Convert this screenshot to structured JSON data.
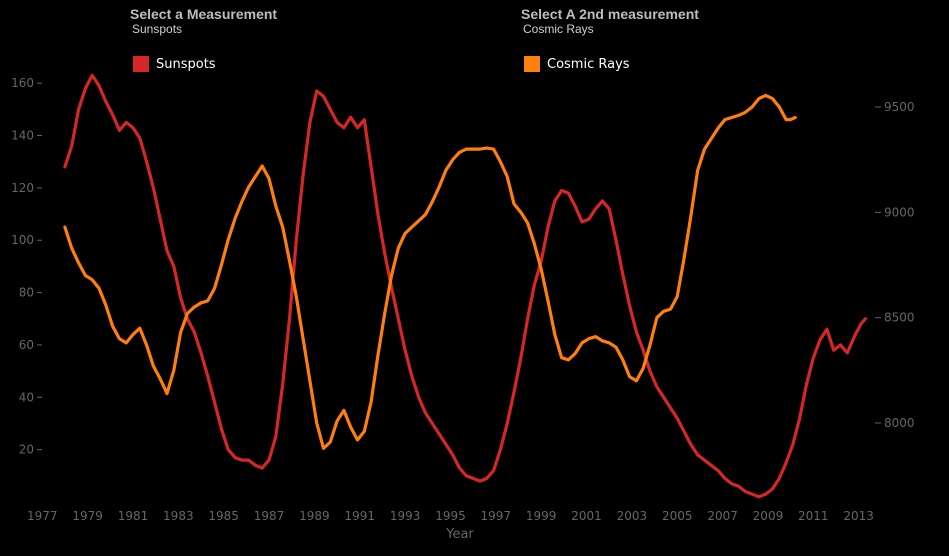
{
  "selectors": {
    "first": {
      "title": "Select a Measurement",
      "value": "Sunspots"
    },
    "second": {
      "title": "Select A 2nd measurement",
      "value": "Cosmic Rays"
    }
  },
  "chart_data": {
    "type": "line",
    "xlabel": "Year",
    "x_ticks": [
      "1977",
      "1979",
      "1981",
      "1983",
      "1985",
      "1987",
      "1989",
      "1991",
      "1993",
      "1995",
      "1997",
      "1999",
      "2001",
      "2003",
      "2005",
      "2007",
      "2009",
      "2011",
      "2013"
    ],
    "xlim": [
      1976.9,
      2013.5
    ],
    "y_left": {
      "ticks": [
        20,
        40,
        60,
        80,
        100,
        120,
        140,
        160
      ],
      "ylim": [
        0,
        170
      ]
    },
    "y_right": {
      "ticks": [
        8000,
        8500,
        9000,
        9500
      ],
      "ylim": [
        7880,
        9540
      ]
    },
    "grid": false,
    "series": [
      {
        "name": "Sunspots",
        "axis": "left",
        "color": "#d62728",
        "points": [
          [
            1978.0,
            128
          ],
          [
            1978.3,
            136
          ],
          [
            1978.6,
            150
          ],
          [
            1978.9,
            158
          ],
          [
            1979.2,
            163
          ],
          [
            1979.5,
            159
          ],
          [
            1979.8,
            153
          ],
          [
            1980.1,
            148
          ],
          [
            1980.4,
            142
          ],
          [
            1980.7,
            145
          ],
          [
            1981.0,
            143
          ],
          [
            1981.3,
            139
          ],
          [
            1981.6,
            130
          ],
          [
            1981.9,
            120
          ],
          [
            1982.2,
            108
          ],
          [
            1982.5,
            96
          ],
          [
            1982.8,
            90
          ],
          [
            1983.1,
            78
          ],
          [
            1983.4,
            70
          ],
          [
            1983.7,
            65
          ],
          [
            1984.0,
            57
          ],
          [
            1984.3,
            48
          ],
          [
            1984.6,
            38
          ],
          [
            1984.9,
            28
          ],
          [
            1985.2,
            20
          ],
          [
            1985.5,
            17
          ],
          [
            1985.8,
            16
          ],
          [
            1986.1,
            16
          ],
          [
            1986.4,
            14
          ],
          [
            1986.7,
            13
          ],
          [
            1987.0,
            16
          ],
          [
            1987.3,
            25
          ],
          [
            1987.6,
            45
          ],
          [
            1987.9,
            70
          ],
          [
            1988.2,
            100
          ],
          [
            1988.5,
            125
          ],
          [
            1988.8,
            145
          ],
          [
            1989.1,
            157
          ],
          [
            1989.4,
            155
          ],
          [
            1989.7,
            150
          ],
          [
            1990.0,
            145
          ],
          [
            1990.3,
            143
          ],
          [
            1990.6,
            147
          ],
          [
            1990.9,
            143
          ],
          [
            1991.2,
            146
          ],
          [
            1991.5,
            128
          ],
          [
            1991.8,
            110
          ],
          [
            1992.1,
            95
          ],
          [
            1992.4,
            82
          ],
          [
            1992.7,
            70
          ],
          [
            1993.0,
            58
          ],
          [
            1993.3,
            48
          ],
          [
            1993.6,
            40
          ],
          [
            1993.9,
            34
          ],
          [
            1994.2,
            30
          ],
          [
            1994.5,
            26
          ],
          [
            1994.8,
            22
          ],
          [
            1995.1,
            18
          ],
          [
            1995.4,
            13
          ],
          [
            1995.7,
            10
          ],
          [
            1996.0,
            9
          ],
          [
            1996.3,
            8
          ],
          [
            1996.6,
            9
          ],
          [
            1996.9,
            12
          ],
          [
            1997.2,
            20
          ],
          [
            1997.5,
            30
          ],
          [
            1997.8,
            42
          ],
          [
            1998.1,
            55
          ],
          [
            1998.4,
            70
          ],
          [
            1998.7,
            83
          ],
          [
            1999.0,
            92
          ],
          [
            1999.3,
            105
          ],
          [
            1999.6,
            115
          ],
          [
            1999.9,
            119
          ],
          [
            2000.2,
            118
          ],
          [
            2000.5,
            113
          ],
          [
            2000.8,
            107
          ],
          [
            2001.1,
            108
          ],
          [
            2001.4,
            112
          ],
          [
            2001.7,
            115
          ],
          [
            2002.0,
            112
          ],
          [
            2002.3,
            100
          ],
          [
            2002.6,
            87
          ],
          [
            2002.9,
            75
          ],
          [
            2003.2,
            65
          ],
          [
            2003.5,
            58
          ],
          [
            2003.8,
            50
          ],
          [
            2004.1,
            44
          ],
          [
            2004.4,
            40
          ],
          [
            2004.7,
            36
          ],
          [
            2005.0,
            32
          ],
          [
            2005.3,
            27
          ],
          [
            2005.6,
            22
          ],
          [
            2005.9,
            18
          ],
          [
            2006.2,
            16
          ],
          [
            2006.5,
            14
          ],
          [
            2006.8,
            12
          ],
          [
            2007.1,
            9
          ],
          [
            2007.4,
            7
          ],
          [
            2007.7,
            6
          ],
          [
            2008.0,
            4
          ],
          [
            2008.3,
            3
          ],
          [
            2008.6,
            2
          ],
          [
            2008.9,
            3
          ],
          [
            2009.2,
            5
          ],
          [
            2009.5,
            9
          ],
          [
            2009.8,
            15
          ],
          [
            2010.1,
            22
          ],
          [
            2010.4,
            32
          ],
          [
            2010.7,
            45
          ],
          [
            2011.0,
            55
          ],
          [
            2011.3,
            62
          ],
          [
            2011.6,
            66
          ],
          [
            2011.9,
            58
          ],
          [
            2012.2,
            60
          ],
          [
            2012.5,
            57
          ],
          [
            2012.8,
            63
          ],
          [
            2013.1,
            68
          ],
          [
            2013.3,
            70
          ]
        ]
      },
      {
        "name": "Cosmic Rays",
        "axis": "right",
        "color": "#ff7f0e",
        "points": [
          [
            1978.0,
            8930
          ],
          [
            1978.3,
            8830
          ],
          [
            1978.6,
            8760
          ],
          [
            1978.9,
            8700
          ],
          [
            1979.2,
            8680
          ],
          [
            1979.5,
            8640
          ],
          [
            1979.8,
            8560
          ],
          [
            1980.1,
            8460
          ],
          [
            1980.4,
            8400
          ],
          [
            1980.7,
            8380
          ],
          [
            1981.0,
            8420
          ],
          [
            1981.3,
            8450
          ],
          [
            1981.6,
            8370
          ],
          [
            1981.9,
            8270
          ],
          [
            1982.2,
            8210
          ],
          [
            1982.5,
            8140
          ],
          [
            1982.8,
            8250
          ],
          [
            1983.1,
            8430
          ],
          [
            1983.4,
            8520
          ],
          [
            1983.7,
            8550
          ],
          [
            1984.0,
            8570
          ],
          [
            1984.3,
            8580
          ],
          [
            1984.6,
            8640
          ],
          [
            1984.9,
            8750
          ],
          [
            1985.2,
            8870
          ],
          [
            1985.5,
            8970
          ],
          [
            1985.8,
            9050
          ],
          [
            1986.1,
            9120
          ],
          [
            1986.4,
            9170
          ],
          [
            1986.7,
            9220
          ],
          [
            1987.0,
            9160
          ],
          [
            1987.3,
            9030
          ],
          [
            1987.6,
            8930
          ],
          [
            1987.9,
            8770
          ],
          [
            1988.2,
            8600
          ],
          [
            1988.5,
            8400
          ],
          [
            1988.8,
            8200
          ],
          [
            1989.1,
            8000
          ],
          [
            1989.4,
            7880
          ],
          [
            1989.7,
            7910
          ],
          [
            1990.0,
            8010
          ],
          [
            1990.3,
            8060
          ],
          [
            1990.6,
            7980
          ],
          [
            1990.9,
            7920
          ],
          [
            1991.2,
            7960
          ],
          [
            1991.5,
            8100
          ],
          [
            1991.8,
            8320
          ],
          [
            1992.1,
            8520
          ],
          [
            1992.4,
            8700
          ],
          [
            1992.7,
            8830
          ],
          [
            1993.0,
            8900
          ],
          [
            1993.3,
            8930
          ],
          [
            1993.6,
            8960
          ],
          [
            1993.9,
            8990
          ],
          [
            1994.2,
            9050
          ],
          [
            1994.5,
            9120
          ],
          [
            1994.8,
            9200
          ],
          [
            1995.1,
            9250
          ],
          [
            1995.4,
            9285
          ],
          [
            1995.7,
            9300
          ],
          [
            1996.0,
            9300
          ],
          [
            1996.3,
            9300
          ],
          [
            1996.6,
            9305
          ],
          [
            1996.9,
            9300
          ],
          [
            1997.2,
            9240
          ],
          [
            1997.5,
            9170
          ],
          [
            1997.8,
            9040
          ],
          [
            1998.1,
            9000
          ],
          [
            1998.4,
            8950
          ],
          [
            1998.7,
            8850
          ],
          [
            1999.0,
            8730
          ],
          [
            1999.3,
            8580
          ],
          [
            1999.6,
            8420
          ],
          [
            1999.9,
            8310
          ],
          [
            2000.2,
            8300
          ],
          [
            2000.5,
            8330
          ],
          [
            2000.8,
            8380
          ],
          [
            2001.1,
            8400
          ],
          [
            2001.4,
            8410
          ],
          [
            2001.7,
            8390
          ],
          [
            2002.0,
            8380
          ],
          [
            2002.3,
            8360
          ],
          [
            2002.6,
            8300
          ],
          [
            2002.9,
            8220
          ],
          [
            2003.2,
            8200
          ],
          [
            2003.5,
            8260
          ],
          [
            2003.8,
            8370
          ],
          [
            2004.1,
            8500
          ],
          [
            2004.4,
            8530
          ],
          [
            2004.7,
            8540
          ],
          [
            2005.0,
            8600
          ],
          [
            2005.3,
            8780
          ],
          [
            2005.6,
            8980
          ],
          [
            2005.9,
            9200
          ],
          [
            2006.2,
            9300
          ],
          [
            2006.5,
            9350
          ],
          [
            2006.8,
            9400
          ],
          [
            2007.1,
            9440
          ],
          [
            2007.4,
            9450
          ],
          [
            2007.7,
            9460
          ],
          [
            2008.0,
            9475
          ],
          [
            2008.3,
            9500
          ],
          [
            2008.6,
            9540
          ],
          [
            2008.9,
            9555
          ],
          [
            2009.2,
            9540
          ],
          [
            2009.5,
            9500
          ],
          [
            2009.8,
            9440
          ],
          [
            2010.0,
            9440
          ],
          [
            2010.2,
            9450
          ]
        ]
      }
    ]
  }
}
